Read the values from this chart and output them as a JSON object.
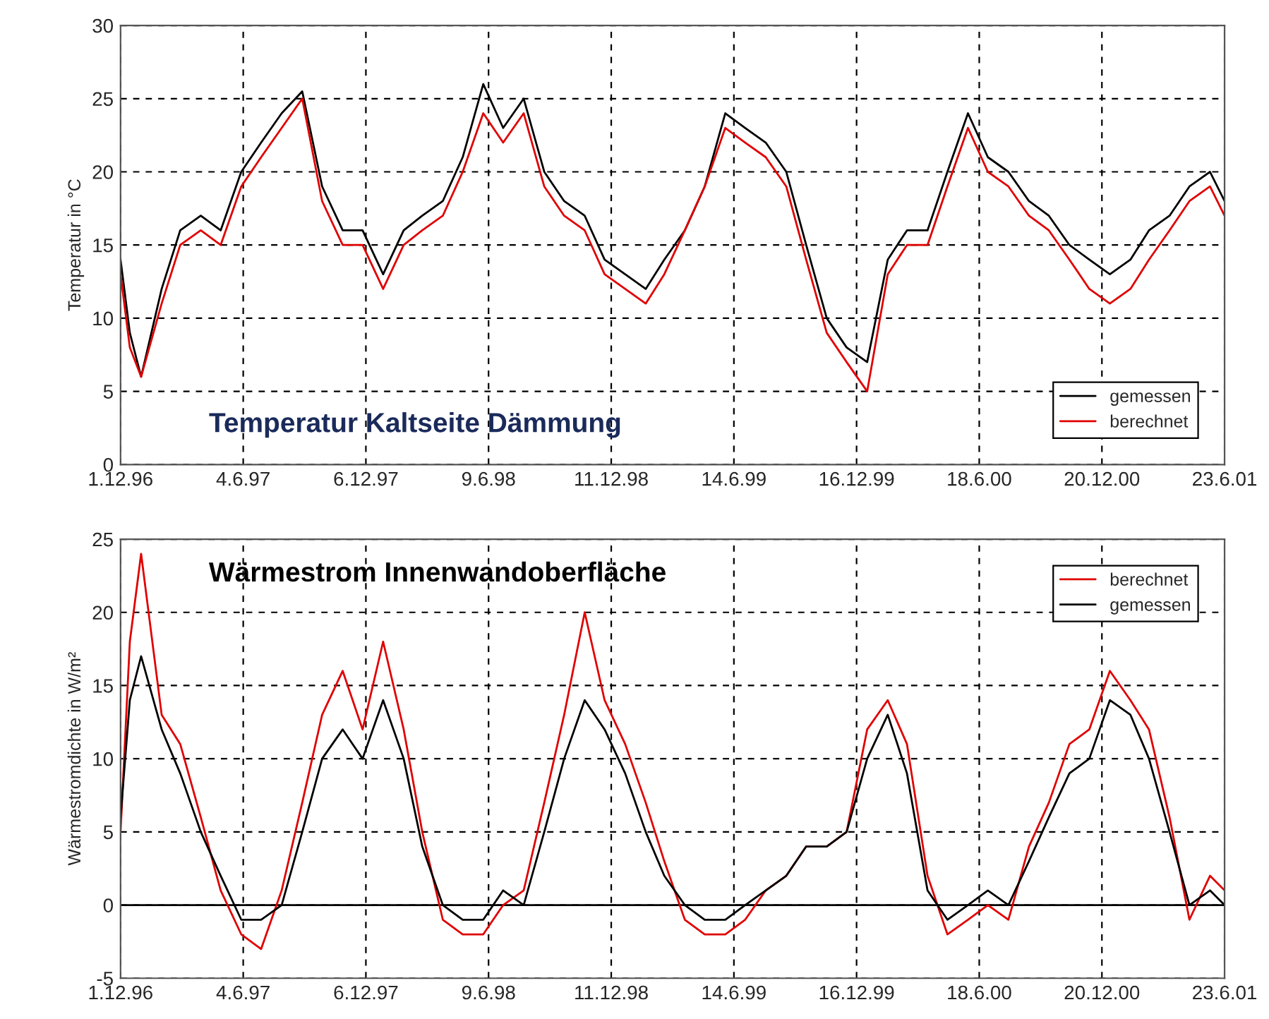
{
  "chart_data": [
    {
      "type": "line",
      "title": "Temperatur Kaltseite Dämmung",
      "ylabel": "Temperatur in °C",
      "x": [
        "1996-12-01",
        "1996-12-15",
        "1997-01-01",
        "1997-02-01",
        "1997-03-01",
        "1997-04-01",
        "1997-05-01",
        "1997-06-01",
        "1997-07-01",
        "1997-08-01",
        "1997-09-01",
        "1997-10-01",
        "1997-11-01",
        "1997-12-01",
        "1998-01-01",
        "1998-02-01",
        "1998-03-01",
        "1998-04-01",
        "1998-05-01",
        "1998-06-01",
        "1998-07-01",
        "1998-08-01",
        "1998-09-01",
        "1998-10-01",
        "1998-11-01",
        "1998-12-01",
        "1999-01-01",
        "1999-02-01",
        "1999-03-01",
        "1999-04-01",
        "1999-05-01",
        "1999-06-01",
        "1999-07-01",
        "1999-08-01",
        "1999-09-01",
        "1999-10-01",
        "1999-11-01",
        "1999-12-01",
        "2000-01-01",
        "2000-02-01",
        "2000-03-01",
        "2000-04-01",
        "2000-05-01",
        "2000-06-01",
        "2000-07-01",
        "2000-08-01",
        "2000-09-01",
        "2000-10-01",
        "2000-11-01",
        "2000-12-01",
        "2001-01-01",
        "2001-02-01",
        "2001-03-01",
        "2001-04-01",
        "2001-05-01",
        "2001-06-01",
        "2001-06-23"
      ],
      "series": [
        {
          "name": "gemessen",
          "color": "#000000",
          "values": [
            14,
            9,
            6,
            12,
            16,
            17,
            16,
            20,
            22,
            24,
            25.5,
            19,
            16,
            16,
            13,
            16,
            17,
            18,
            21,
            26,
            23,
            25,
            20,
            18,
            17,
            14,
            13,
            12,
            14,
            16,
            19,
            24,
            23,
            22,
            20,
            15,
            10,
            8,
            7,
            14,
            16,
            16,
            20,
            24,
            21,
            20,
            18,
            17,
            15,
            14,
            13,
            14,
            16,
            17,
            19,
            20,
            18
          ]
        },
        {
          "name": "berechnet",
          "color": "#e00000",
          "values": [
            13,
            8,
            6,
            11,
            15,
            16,
            15,
            19,
            21,
            23,
            25,
            18,
            15,
            15,
            12,
            15,
            16,
            17,
            20,
            24,
            22,
            24,
            19,
            17,
            16,
            13,
            12,
            11,
            13,
            16,
            19,
            23,
            22,
            21,
            19,
            14,
            9,
            7,
            5,
            13,
            15,
            15,
            19,
            23,
            20,
            19,
            17,
            16,
            14,
            12,
            11,
            12,
            14,
            16,
            18,
            19,
            17
          ]
        }
      ],
      "xlim": [
        "1996-12-01",
        "2001-06-23"
      ],
      "xticks": [
        {
          "value": "1996-12-01",
          "label": "1.12.96"
        },
        {
          "value": "1997-06-04",
          "label": "4.6.97"
        },
        {
          "value": "1997-12-06",
          "label": "6.12.97"
        },
        {
          "value": "1998-06-09",
          "label": "9.6.98"
        },
        {
          "value": "1998-12-11",
          "label": "11.12.98"
        },
        {
          "value": "1999-06-14",
          "label": "14.6.99"
        },
        {
          "value": "1999-12-16",
          "label": "16.12.99"
        },
        {
          "value": "2000-06-18",
          "label": "18.6.00"
        },
        {
          "value": "2000-12-20",
          "label": "20.12.00"
        },
        {
          "value": "2001-06-23",
          "label": "23.6.01"
        }
      ],
      "ylim": [
        0,
        30
      ],
      "yticks": [
        0,
        5,
        10,
        15,
        20,
        25,
        30
      ],
      "grid": true,
      "line_style": "solid",
      "legend": "bottom right"
    },
    {
      "type": "line",
      "title": "Wärmestrom Innenwandoberfläche",
      "ylabel": "Wärmestromdichte in W/m²",
      "x": [
        "1996-12-01",
        "1996-12-15",
        "1997-01-01",
        "1997-02-01",
        "1997-03-01",
        "1997-04-01",
        "1997-05-01",
        "1997-06-01",
        "1997-07-01",
        "1997-08-01",
        "1997-09-01",
        "1997-10-01",
        "1997-11-01",
        "1997-12-01",
        "1998-01-01",
        "1998-02-01",
        "1998-03-01",
        "1998-04-01",
        "1998-05-01",
        "1998-06-01",
        "1998-07-01",
        "1998-08-01",
        "1998-09-01",
        "1998-10-01",
        "1998-11-01",
        "1998-12-01",
        "1999-01-01",
        "1999-02-01",
        "1999-03-01",
        "1999-04-01",
        "1999-05-01",
        "1999-06-01",
        "1999-07-01",
        "1999-08-01",
        "1999-09-01",
        "1999-10-01",
        "1999-11-01",
        "1999-12-01",
        "2000-01-01",
        "2000-02-01",
        "2000-03-01",
        "2000-04-01",
        "2000-05-01",
        "2000-06-01",
        "2000-07-01",
        "2000-08-01",
        "2000-09-01",
        "2000-10-01",
        "2000-11-01",
        "2000-12-01",
        "2001-01-01",
        "2001-02-01",
        "2001-03-01",
        "2001-04-01",
        "2001-05-01",
        "2001-06-01",
        "2001-06-23"
      ],
      "series": [
        {
          "name": "berechnet",
          "color": "#e00000",
          "values": [
            5,
            18,
            24,
            13,
            11,
            6,
            1,
            -2,
            -3,
            1,
            7,
            13,
            16,
            12,
            18,
            12,
            5,
            -1,
            -2,
            -2,
            0,
            1,
            7,
            13,
            20,
            14,
            11,
            7,
            3,
            -1,
            -2,
            -2,
            -1,
            1,
            2,
            4,
            4,
            5,
            12,
            14,
            11,
            2,
            -2,
            -1,
            0,
            -1,
            4,
            7,
            11,
            12,
            16,
            14,
            12,
            6,
            -1,
            2,
            1
          ]
        },
        {
          "name": "gemessen",
          "color": "#000000",
          "values": [
            6,
            14,
            17,
            12,
            9,
            5,
            2,
            -1,
            -1,
            0,
            5,
            10,
            12,
            10,
            14,
            10,
            4,
            0,
            -1,
            -1,
            1,
            0,
            5,
            10,
            14,
            12,
            9,
            5,
            2,
            0,
            -1,
            -1,
            0,
            1,
            2,
            4,
            4,
            5,
            10,
            13,
            9,
            1,
            -1,
            0,
            1,
            0,
            3,
            6,
            9,
            10,
            14,
            13,
            10,
            5,
            0,
            1,
            0
          ]
        }
      ],
      "xlim": [
        "1996-12-01",
        "2001-06-23"
      ],
      "xticks": [
        {
          "value": "1996-12-01",
          "label": "1.12.96"
        },
        {
          "value": "1997-06-04",
          "label": "4.6.97"
        },
        {
          "value": "1997-12-06",
          "label": "6.12.97"
        },
        {
          "value": "1998-06-09",
          "label": "9.6.98"
        },
        {
          "value": "1998-12-11",
          "label": "11.12.98"
        },
        {
          "value": "1999-06-14",
          "label": "14.6.99"
        },
        {
          "value": "1999-12-16",
          "label": "16.12.99"
        },
        {
          "value": "2000-06-18",
          "label": "18.6.00"
        },
        {
          "value": "2000-12-20",
          "label": "20.12.00"
        },
        {
          "value": "2001-06-23",
          "label": "23.6.01"
        }
      ],
      "ylim": [
        -5,
        25
      ],
      "yticks": [
        -5,
        0,
        5,
        10,
        15,
        20,
        25
      ],
      "grid": true,
      "line_style": "solid",
      "legend": "top right",
      "ref_lines": [
        {
          "axis": "y",
          "value": 0,
          "color": "#000000",
          "line_style": "solid"
        }
      ]
    }
  ]
}
